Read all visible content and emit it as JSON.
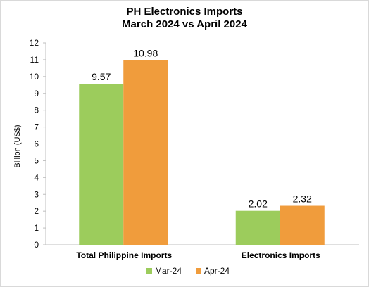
{
  "chart_data": {
    "type": "bar",
    "title_lines": [
      "PH Electronics Imports",
      "March 2024 vs April 2024"
    ],
    "categories": [
      "Total Philippine Imports",
      "Electronics Imports"
    ],
    "series": [
      {
        "name": "Mar-24",
        "values": [
          9.57,
          2.02
        ],
        "labels": [
          "9.57",
          "2.02"
        ],
        "color": "#9ccc5c"
      },
      {
        "name": "Apr-24",
        "values": [
          10.98,
          2.32
        ],
        "labels": [
          "10.98",
          "2.32"
        ],
        "color": "#f09c3c"
      }
    ],
    "xlabel": "",
    "ylabel": "Billion (US$)",
    "ylim": [
      0,
      12
    ],
    "yticks": [
      "0",
      "1",
      "2",
      "3",
      "4",
      "5",
      "6",
      "7",
      "8",
      "9",
      "10",
      "11",
      "12"
    ],
    "grid": false,
    "legend_position": "bottom"
  }
}
